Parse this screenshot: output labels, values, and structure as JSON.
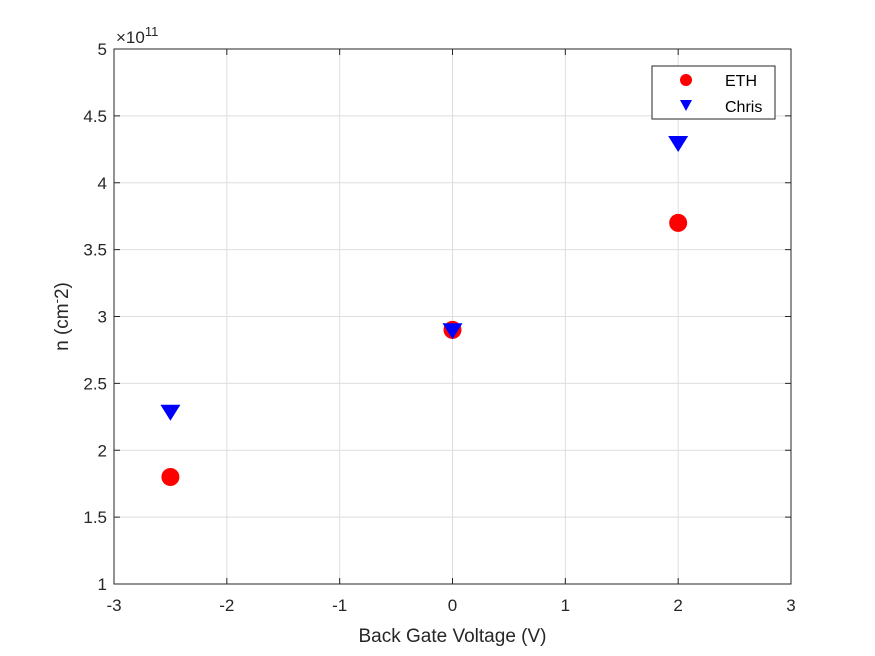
{
  "chart_data": {
    "type": "scatter",
    "xlabel": "Back Gate Voltage (V)",
    "ylabel_main": "n (cm",
    "ylabel_sup": "-",
    "ylabel_end": "2)",
    "exponent_base": "×10",
    "exponent_power": "11",
    "xlim": [
      -3,
      3
    ],
    "ylim": [
      1,
      5
    ],
    "y_scale_factor": 100000000000.0,
    "x_ticks": [
      -3,
      -2,
      -1,
      0,
      1,
      2,
      3
    ],
    "y_ticks": [
      1,
      1.5,
      2,
      2.5,
      3,
      3.5,
      4,
      4.5,
      5
    ],
    "x_tick_labels": [
      "-3",
      "-2",
      "-1",
      "0",
      "1",
      "2",
      "3"
    ],
    "y_tick_labels": [
      "1",
      "1.5",
      "2",
      "2.5",
      "3",
      "3.5",
      "4",
      "4.5",
      "5"
    ],
    "grid": true,
    "legend_position": "top-right",
    "series": [
      {
        "name": "ETH",
        "marker": "circle",
        "color": "#ff0000",
        "x": [
          -2.5,
          0,
          2
        ],
        "y": [
          1.8,
          2.9,
          3.7
        ]
      },
      {
        "name": "Chris",
        "marker": "triangle-down",
        "color": "#0000ff",
        "x": [
          -2.5,
          0,
          2
        ],
        "y": [
          2.28,
          2.89,
          4.29
        ]
      }
    ]
  }
}
